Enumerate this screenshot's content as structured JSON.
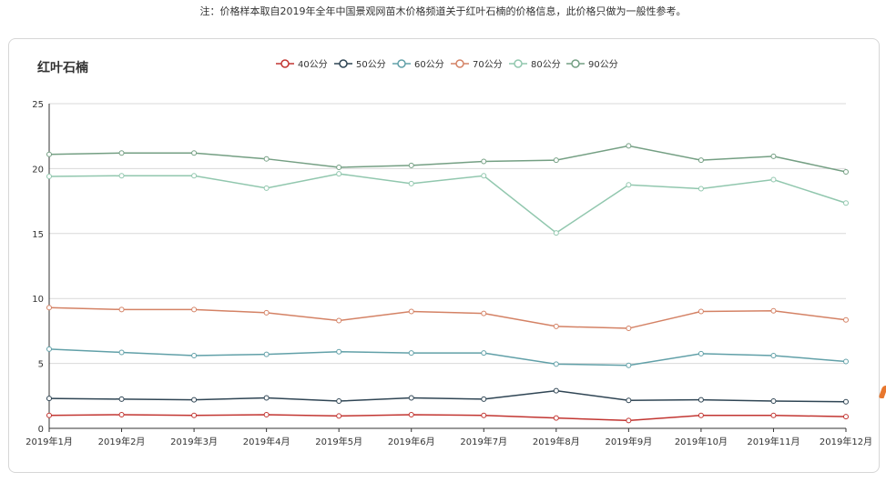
{
  "note": "注：价格样本取自2019年全年中国景观网苗木价格频道关于红叶石楠的价格信息，此价格只做为一般性参考。",
  "chart_data": {
    "type": "line",
    "title": "红叶石楠",
    "categories": [
      "2019年1月",
      "2019年2月",
      "2019年3月",
      "2019年4月",
      "2019年5月",
      "2019年6月",
      "2019年7月",
      "2019年8月",
      "2019年9月",
      "2019年10月",
      "2019年11月",
      "2019年12月"
    ],
    "ylim": [
      0,
      25
    ],
    "yticks": [
      0,
      5,
      10,
      15,
      20,
      25
    ],
    "grid": true,
    "legend_position": "top-center",
    "series": [
      {
        "name": "40公分",
        "color": "#c23531",
        "values": [
          1.0,
          1.05,
          1.0,
          1.05,
          0.95,
          1.05,
          1.0,
          0.8,
          0.6,
          1.0,
          1.0,
          0.9
        ]
      },
      {
        "name": "50公分",
        "color": "#2f4554",
        "values": [
          2.3,
          2.25,
          2.2,
          2.35,
          2.1,
          2.35,
          2.25,
          2.9,
          2.15,
          2.2,
          2.1,
          2.05
        ]
      },
      {
        "name": "60公分",
        "color": "#61a0a8",
        "values": [
          6.1,
          5.85,
          5.6,
          5.7,
          5.9,
          5.8,
          5.8,
          4.95,
          4.85,
          5.75,
          5.6,
          5.15
        ]
      },
      {
        "name": "70公分",
        "color": "#d48265",
        "values": [
          9.3,
          9.15,
          9.15,
          8.9,
          8.3,
          9.0,
          8.85,
          7.85,
          7.7,
          9.0,
          9.05,
          8.35
        ]
      },
      {
        "name": "80公分",
        "color": "#91c7ae",
        "values": [
          19.4,
          19.45,
          19.45,
          18.5,
          19.6,
          18.85,
          19.45,
          15.05,
          18.75,
          18.45,
          19.15,
          17.35
        ]
      },
      {
        "name": "90公分",
        "color": "#749f83",
        "values": [
          21.1,
          21.2,
          21.2,
          20.75,
          20.1,
          20.25,
          20.55,
          20.65,
          21.75,
          20.65,
          20.95,
          19.75
        ]
      }
    ]
  }
}
